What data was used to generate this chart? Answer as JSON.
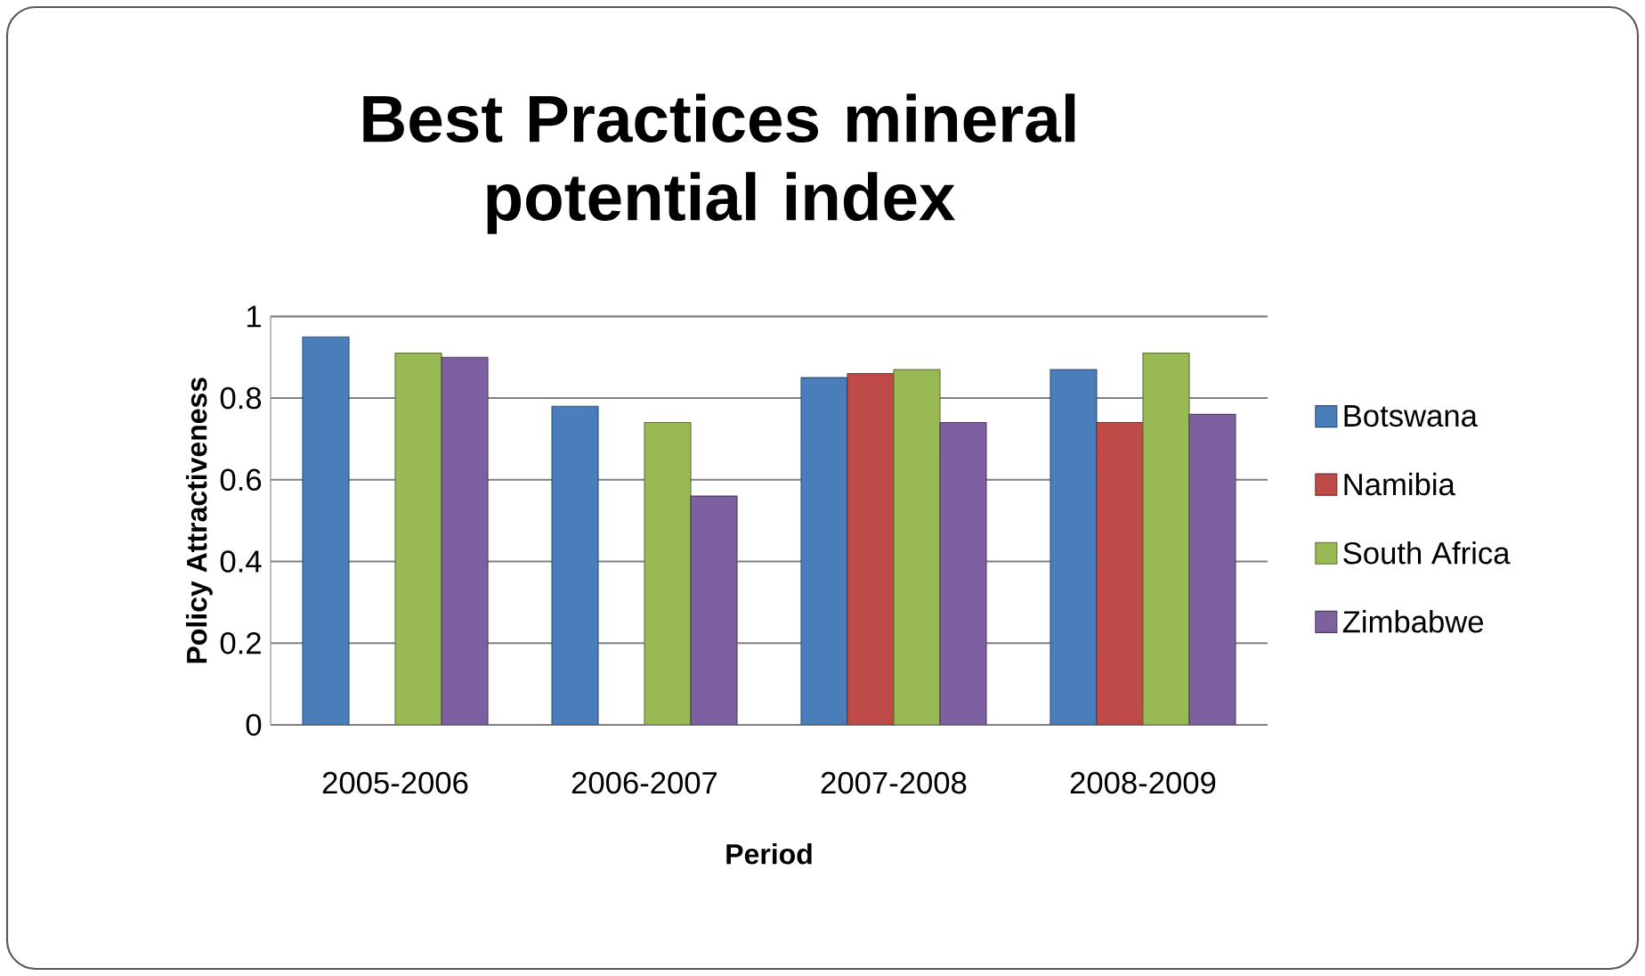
{
  "chart_data": {
    "type": "bar",
    "title": "Best Practices mineral potential index",
    "xlabel": "Period",
    "ylabel": "Policy Attractiveness",
    "categories": [
      "2005-2006",
      "2006-2007",
      "2007-2008",
      "2008-2009"
    ],
    "series": [
      {
        "name": "Botswana",
        "color": "#4a7ebb",
        "values": [
          0.95,
          0.78,
          0.85,
          0.87
        ]
      },
      {
        "name": "Namibia",
        "color": "#be4b48",
        "values": [
          null,
          null,
          0.86,
          0.74
        ]
      },
      {
        "name": "South Africa",
        "color": "#98b954",
        "values": [
          0.91,
          0.74,
          0.87,
          0.91
        ]
      },
      {
        "name": "Zimbabwe",
        "color": "#7d60a0",
        "values": [
          0.9,
          0.56,
          0.74,
          0.76
        ]
      }
    ],
    "ylim": [
      0,
      1
    ],
    "yticks": [
      0,
      0.2,
      0.4,
      0.6,
      0.8,
      1
    ],
    "grid": "y",
    "legend": "right"
  }
}
